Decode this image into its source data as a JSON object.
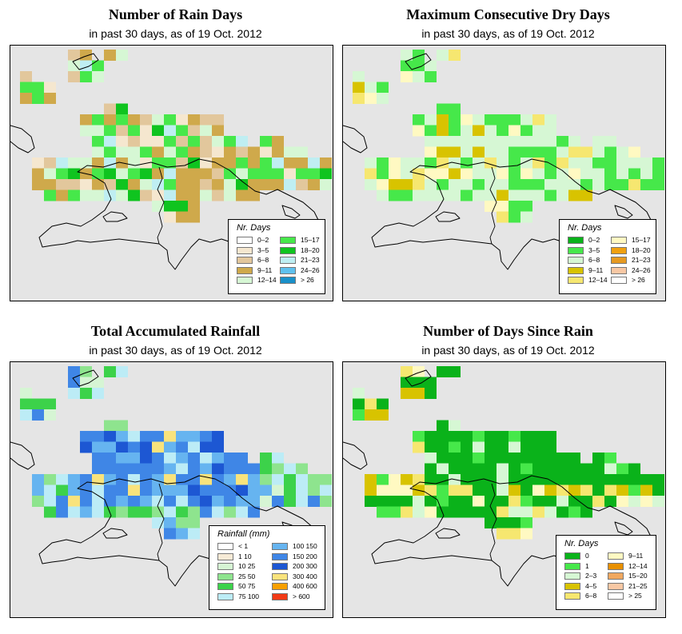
{
  "panels": [
    {
      "id": "rain-days",
      "title": "Number of Rain Days",
      "subtitle": "in past 30 days, as of  19 Oct. 2012",
      "legend": {
        "title": "Nr. Days",
        "items": [
          {
            "label": "0–2",
            "color": "#ffffff"
          },
          {
            "label": "3–5",
            "color": "#f5e7cf"
          },
          {
            "label": "6–8",
            "color": "#e2c79c"
          },
          {
            "label": "9–11",
            "color": "#cfa94b"
          },
          {
            "label": "12–14",
            "color": "#d6f7d4"
          },
          {
            "label": "15–17",
            "color": "#46e84a"
          },
          {
            "label": "18–20",
            "color": "#0fc41f"
          },
          {
            "label": "21–23",
            "color": "#bfeef2"
          },
          {
            "label": "24–26",
            "color": "#5fc1ee"
          },
          {
            "label": "> 26",
            "color": "#1990c9"
          }
        ]
      }
    },
    {
      "id": "dry-days",
      "title": "Maximum Consecutive Dry Days",
      "subtitle": "in past 30 days, as of  19 Oct. 2012",
      "legend": {
        "title": "Nr. Days",
        "items": [
          {
            "label": "0–2",
            "color": "#0ab21a"
          },
          {
            "label": "3–5",
            "color": "#46e84a"
          },
          {
            "label": "6–8",
            "color": "#d6f7d4"
          },
          {
            "label": "9–11",
            "color": "#d8c300"
          },
          {
            "label": "12–14",
            "color": "#f6e770"
          },
          {
            "label": "15–17",
            "color": "#fff9c2"
          },
          {
            "label": "18–20",
            "color": "#f0a010"
          },
          {
            "label": "21–23",
            "color": "#e69a22"
          },
          {
            "label": "24–26",
            "color": "#f8c8a4"
          },
          {
            "label": "> 26",
            "color": "#ffffff"
          }
        ]
      }
    },
    {
      "id": "rainfall",
      "title": "Total Accumulated Rainfall",
      "subtitle": "in past 30 days, as of  19 Oct. 2012",
      "legend": {
        "title": "Rainfall (mm)",
        "items": [
          {
            "label": "< 1",
            "color": "#ffffff"
          },
          {
            "label": "1   10",
            "color": "#f6ead6"
          },
          {
            "label": "10   25",
            "color": "#d6f5d4"
          },
          {
            "label": "25   50",
            "color": "#8ee48e"
          },
          {
            "label": "50   75",
            "color": "#3cd24a"
          },
          {
            "label": "75  100",
            "color": "#bcecf6"
          },
          {
            "label": "100  150",
            "color": "#66b4f0"
          },
          {
            "label": "150  200",
            "color": "#3f86e6"
          },
          {
            "label": "200  300",
            "color": "#1d57d3"
          },
          {
            "label": "300  400",
            "color": "#f9e37c"
          },
          {
            "label": "400  600",
            "color": "#f8a000"
          },
          {
            "label": "> 600",
            "color": "#f23a16"
          }
        ]
      }
    },
    {
      "id": "since-rain",
      "title": "Number of Days Since Rain",
      "subtitle": "in past 30 days, as of  19 Oct. 2012",
      "legend": {
        "title": "Nr. Days",
        "items": [
          {
            "label": "0",
            "color": "#0ab21a"
          },
          {
            "label": "1",
            "color": "#46e84a"
          },
          {
            "label": "2–3",
            "color": "#d6f7d4"
          },
          {
            "label": "4–5",
            "color": "#d8c300"
          },
          {
            "label": "6–8",
            "color": "#f6e770"
          },
          {
            "label": "9–11",
            "color": "#fff9c2"
          },
          {
            "label": "12–14",
            "color": "#e89000"
          },
          {
            "label": "15–20",
            "color": "#f0a860"
          },
          {
            "label": "21–25",
            "color": "#f8c8a4"
          },
          {
            "label": "> 25",
            "color": "#ffffff"
          }
        ]
      }
    }
  ]
}
